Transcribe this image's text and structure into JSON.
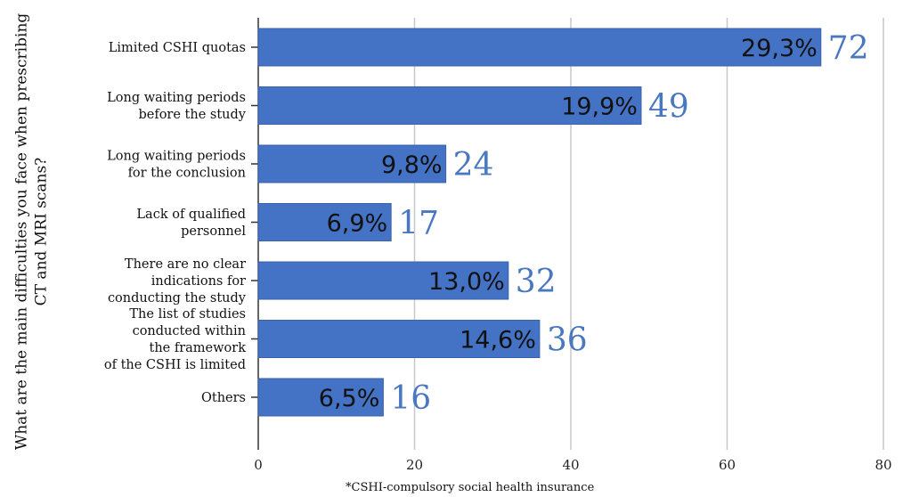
{
  "chart_data": {
    "type": "bar",
    "orientation": "horizontal",
    "ylabel": "What are the main difficulties you face when prescribing\nCT and MRI scans?",
    "footnote": "*CSHI-compulsory social health insurance",
    "xlim": [
      0,
      80
    ],
    "xticks": [
      "0",
      "20",
      "40",
      "60",
      "80"
    ],
    "grid": true,
    "bar_color": "#4472c4",
    "count_label_color": "#4a78c0",
    "categories": [
      "Limited CSHI quotas",
      "Long waiting periods\nbefore the study",
      "Long waiting periods\nfor the conclusion",
      "Lack of qualified\npersonnel",
      "There are no clear\nindications for\nconducting the study",
      "The list of studies\nconducted within\nthe framework\nof the CSHI is limited",
      "Others"
    ],
    "values": [
      72,
      49,
      24,
      17,
      32,
      36,
      16
    ],
    "percent_labels": [
      "29,3%",
      "19,9%",
      "9,8%",
      "6,9%",
      "13,0%",
      "14,6%",
      "6,5%"
    ],
    "count_labels": [
      "72",
      "49",
      "24",
      "17",
      "32",
      "36",
      "16"
    ]
  }
}
